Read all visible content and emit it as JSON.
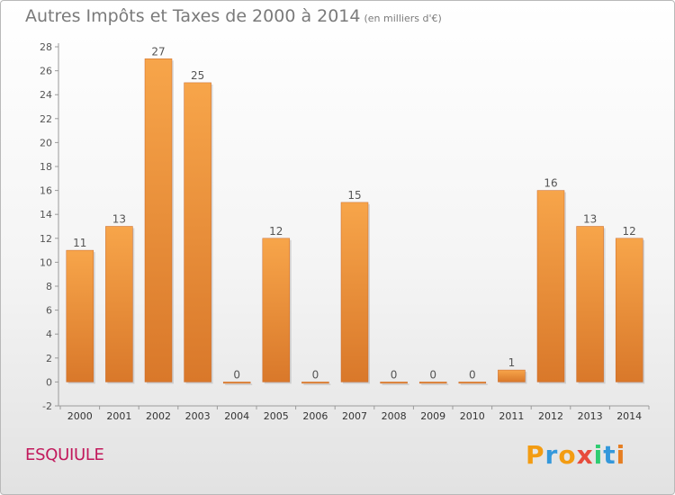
{
  "chart_data": {
    "type": "bar",
    "title": "Autres Impôts et Taxes de 2000 à 2014",
    "unit_label": "(en milliers d'€)",
    "categories": [
      "2000",
      "2001",
      "2002",
      "2003",
      "2004",
      "2005",
      "2006",
      "2007",
      "2008",
      "2009",
      "2010",
      "2011",
      "2012",
      "2013",
      "2014"
    ],
    "values": [
      11,
      13,
      27,
      25,
      0,
      12,
      0,
      15,
      0,
      0,
      0,
      1,
      16,
      13,
      12
    ],
    "ylim": [
      -2,
      28
    ],
    "yticks": [
      -2,
      0,
      2,
      4,
      6,
      8,
      10,
      12,
      14,
      16,
      18,
      20,
      22,
      24,
      26,
      28
    ],
    "grid": false,
    "bar_color_light": "#f7a54a",
    "bar_color_dark": "#d9782a"
  },
  "footer": {
    "town": "ESQUIULE",
    "logo": [
      "P",
      "r",
      "o",
      "x",
      "i",
      "t",
      "i"
    ],
    "logo_colors": [
      "#f39c12",
      "#3498db",
      "#f39c12",
      "#e74c3c",
      "#2ecc71",
      "#3498db",
      "#e67e22"
    ]
  }
}
